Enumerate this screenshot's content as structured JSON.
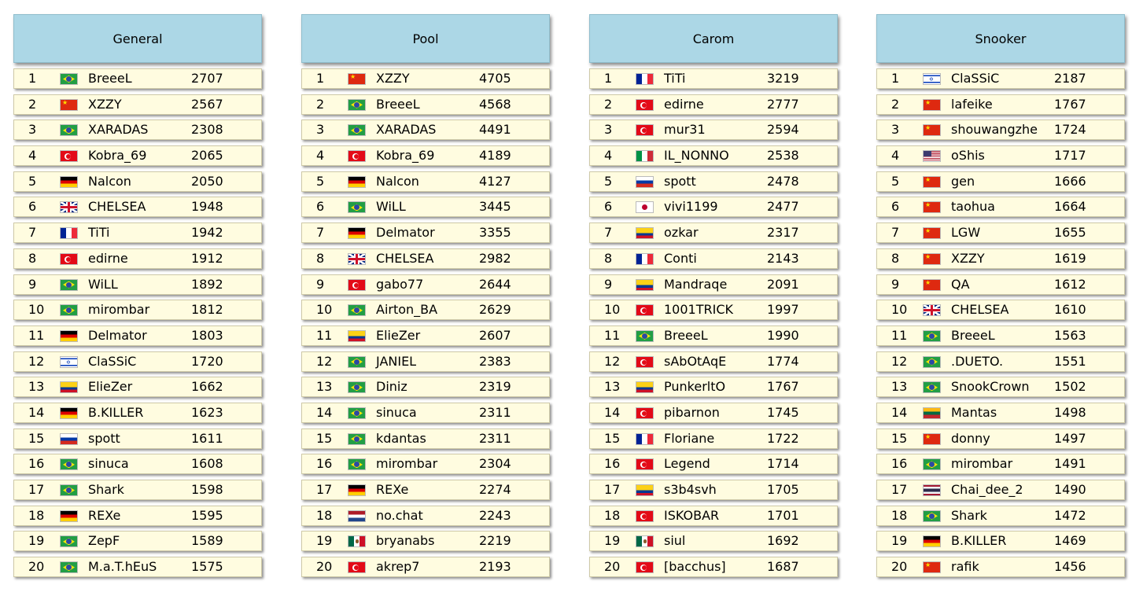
{
  "boards": [
    {
      "title": "General",
      "rows": [
        {
          "rank": "1",
          "flag": "br",
          "name": "BreeeL",
          "score": "2707"
        },
        {
          "rank": "2",
          "flag": "cn",
          "name": "XZZY",
          "score": "2567"
        },
        {
          "rank": "3",
          "flag": "br",
          "name": "XARADAS",
          "score": "2308"
        },
        {
          "rank": "4",
          "flag": "tr",
          "name": "Kobra_69",
          "score": "2065"
        },
        {
          "rank": "5",
          "flag": "de",
          "name": "Nalcon",
          "score": "2050"
        },
        {
          "rank": "6",
          "flag": "gb",
          "name": "CHELSEA",
          "score": "1948"
        },
        {
          "rank": "7",
          "flag": "fr",
          "name": "TiTi",
          "score": "1942"
        },
        {
          "rank": "8",
          "flag": "tr",
          "name": "edirne",
          "score": "1912"
        },
        {
          "rank": "9",
          "flag": "br",
          "name": "WiLL",
          "score": "1892"
        },
        {
          "rank": "10",
          "flag": "br",
          "name": "mirombar",
          "score": "1812"
        },
        {
          "rank": "11",
          "flag": "de",
          "name": "Delmator",
          "score": "1803"
        },
        {
          "rank": "12",
          "flag": "il",
          "name": "ClaSSiC",
          "score": "1720"
        },
        {
          "rank": "13",
          "flag": "co",
          "name": "ElieZer",
          "score": "1662"
        },
        {
          "rank": "14",
          "flag": "de",
          "name": "B.KILLER",
          "score": "1623"
        },
        {
          "rank": "15",
          "flag": "ru",
          "name": "spott",
          "score": "1611"
        },
        {
          "rank": "16",
          "flag": "br",
          "name": "sinuca",
          "score": "1608"
        },
        {
          "rank": "17",
          "flag": "br",
          "name": "Shark",
          "score": "1598"
        },
        {
          "rank": "18",
          "flag": "de",
          "name": "REXe",
          "score": "1595"
        },
        {
          "rank": "19",
          "flag": "br",
          "name": "ZepF",
          "score": "1589"
        },
        {
          "rank": "20",
          "flag": "br",
          "name": "M.a.T.hEuS",
          "score": "1575"
        }
      ]
    },
    {
      "title": "Pool",
      "rows": [
        {
          "rank": "1",
          "flag": "cn",
          "name": "XZZY",
          "score": "4705"
        },
        {
          "rank": "2",
          "flag": "br",
          "name": "BreeeL",
          "score": "4568"
        },
        {
          "rank": "3",
          "flag": "br",
          "name": "XARADAS",
          "score": "4491"
        },
        {
          "rank": "4",
          "flag": "tr",
          "name": "Kobra_69",
          "score": "4189"
        },
        {
          "rank": "5",
          "flag": "de",
          "name": "Nalcon",
          "score": "4127"
        },
        {
          "rank": "6",
          "flag": "br",
          "name": "WiLL",
          "score": "3445"
        },
        {
          "rank": "7",
          "flag": "de",
          "name": "Delmator",
          "score": "3355"
        },
        {
          "rank": "8",
          "flag": "gb",
          "name": "CHELSEA",
          "score": "2982"
        },
        {
          "rank": "9",
          "flag": "tr",
          "name": "gabo77",
          "score": "2644"
        },
        {
          "rank": "10",
          "flag": "br",
          "name": "Airton_BA",
          "score": "2629"
        },
        {
          "rank": "11",
          "flag": "co",
          "name": "ElieZer",
          "score": "2607"
        },
        {
          "rank": "12",
          "flag": "br",
          "name": "JANIEL",
          "score": "2383"
        },
        {
          "rank": "13",
          "flag": "br",
          "name": "Diniz",
          "score": "2319"
        },
        {
          "rank": "14",
          "flag": "br",
          "name": "sinuca",
          "score": "2311"
        },
        {
          "rank": "15",
          "flag": "br",
          "name": "kdantas",
          "score": "2311"
        },
        {
          "rank": "16",
          "flag": "br",
          "name": "mirombar",
          "score": "2304"
        },
        {
          "rank": "17",
          "flag": "de",
          "name": "REXe",
          "score": "2274"
        },
        {
          "rank": "18",
          "flag": "nl",
          "name": "no.chat",
          "score": "2243"
        },
        {
          "rank": "19",
          "flag": "mx",
          "name": "bryanabs",
          "score": "2219"
        },
        {
          "rank": "20",
          "flag": "tr",
          "name": "akrep7",
          "score": "2193"
        }
      ]
    },
    {
      "title": "Carom",
      "rows": [
        {
          "rank": "1",
          "flag": "fr",
          "name": "TiTi",
          "score": "3219"
        },
        {
          "rank": "2",
          "flag": "tr",
          "name": "edirne",
          "score": "2777"
        },
        {
          "rank": "3",
          "flag": "tr",
          "name": "mur31",
          "score": "2594"
        },
        {
          "rank": "4",
          "flag": "it",
          "name": "IL_NONNO",
          "score": "2538"
        },
        {
          "rank": "5",
          "flag": "ru",
          "name": "spott",
          "score": "2478"
        },
        {
          "rank": "6",
          "flag": "jp",
          "name": "vivi1199",
          "score": "2477"
        },
        {
          "rank": "7",
          "flag": "co",
          "name": "ozkar",
          "score": "2317"
        },
        {
          "rank": "8",
          "flag": "fr",
          "name": "Conti",
          "score": "2143"
        },
        {
          "rank": "9",
          "flag": "co",
          "name": "Mandraqe",
          "score": "2091"
        },
        {
          "rank": "10",
          "flag": "tr",
          "name": "1001TRICK",
          "score": "1997"
        },
        {
          "rank": "11",
          "flag": "br",
          "name": "BreeeL",
          "score": "1990"
        },
        {
          "rank": "12",
          "flag": "tr",
          "name": "sAbOtAqE",
          "score": "1774"
        },
        {
          "rank": "13",
          "flag": "co",
          "name": "PunkerltO",
          "score": "1767"
        },
        {
          "rank": "14",
          "flag": "tr",
          "name": "pibarnon",
          "score": "1745"
        },
        {
          "rank": "15",
          "flag": "fr",
          "name": "Floriane",
          "score": "1722"
        },
        {
          "rank": "16",
          "flag": "tr",
          "name": "Legend",
          "score": "1714"
        },
        {
          "rank": "17",
          "flag": "co",
          "name": "s3b4svh",
          "score": "1705"
        },
        {
          "rank": "18",
          "flag": "tr",
          "name": "ISKOBAR",
          "score": "1701"
        },
        {
          "rank": "19",
          "flag": "mx",
          "name": "siul",
          "score": "1692"
        },
        {
          "rank": "20",
          "flag": "tr",
          "name": "[bacchus]",
          "score": "1687"
        }
      ]
    },
    {
      "title": "Snooker",
      "rows": [
        {
          "rank": "1",
          "flag": "il",
          "name": "ClaSSiC",
          "score": "2187"
        },
        {
          "rank": "2",
          "flag": "cn",
          "name": "lafeike",
          "score": "1767"
        },
        {
          "rank": "3",
          "flag": "cn",
          "name": "shouwangzhe",
          "score": "1724"
        },
        {
          "rank": "4",
          "flag": "us",
          "name": "oShis",
          "score": "1717"
        },
        {
          "rank": "5",
          "flag": "cn",
          "name": "gen",
          "score": "1666"
        },
        {
          "rank": "6",
          "flag": "cn",
          "name": "taohua",
          "score": "1664"
        },
        {
          "rank": "7",
          "flag": "cn",
          "name": "LGW",
          "score": "1655"
        },
        {
          "rank": "8",
          "flag": "cn",
          "name": "XZZY",
          "score": "1619"
        },
        {
          "rank": "9",
          "flag": "cn",
          "name": "QA",
          "score": "1612"
        },
        {
          "rank": "10",
          "flag": "gb",
          "name": "CHELSEA",
          "score": "1610"
        },
        {
          "rank": "11",
          "flag": "br",
          "name": "BreeeL",
          "score": "1563"
        },
        {
          "rank": "12",
          "flag": "br",
          "name": ".DUETO.",
          "score": "1551"
        },
        {
          "rank": "13",
          "flag": "br",
          "name": "SnookCrown",
          "score": "1502"
        },
        {
          "rank": "14",
          "flag": "lt",
          "name": "Mantas",
          "score": "1498"
        },
        {
          "rank": "15",
          "flag": "cn",
          "name": "donny",
          "score": "1497"
        },
        {
          "rank": "16",
          "flag": "br",
          "name": "mirombar",
          "score": "1491"
        },
        {
          "rank": "17",
          "flag": "th",
          "name": "Chai_dee_2",
          "score": "1490"
        },
        {
          "rank": "18",
          "flag": "br",
          "name": "Shark",
          "score": "1472"
        },
        {
          "rank": "19",
          "flag": "de",
          "name": "B.KILLER",
          "score": "1469"
        },
        {
          "rank": "20",
          "flag": "cn",
          "name": "rafik",
          "score": "1456"
        }
      ]
    }
  ]
}
